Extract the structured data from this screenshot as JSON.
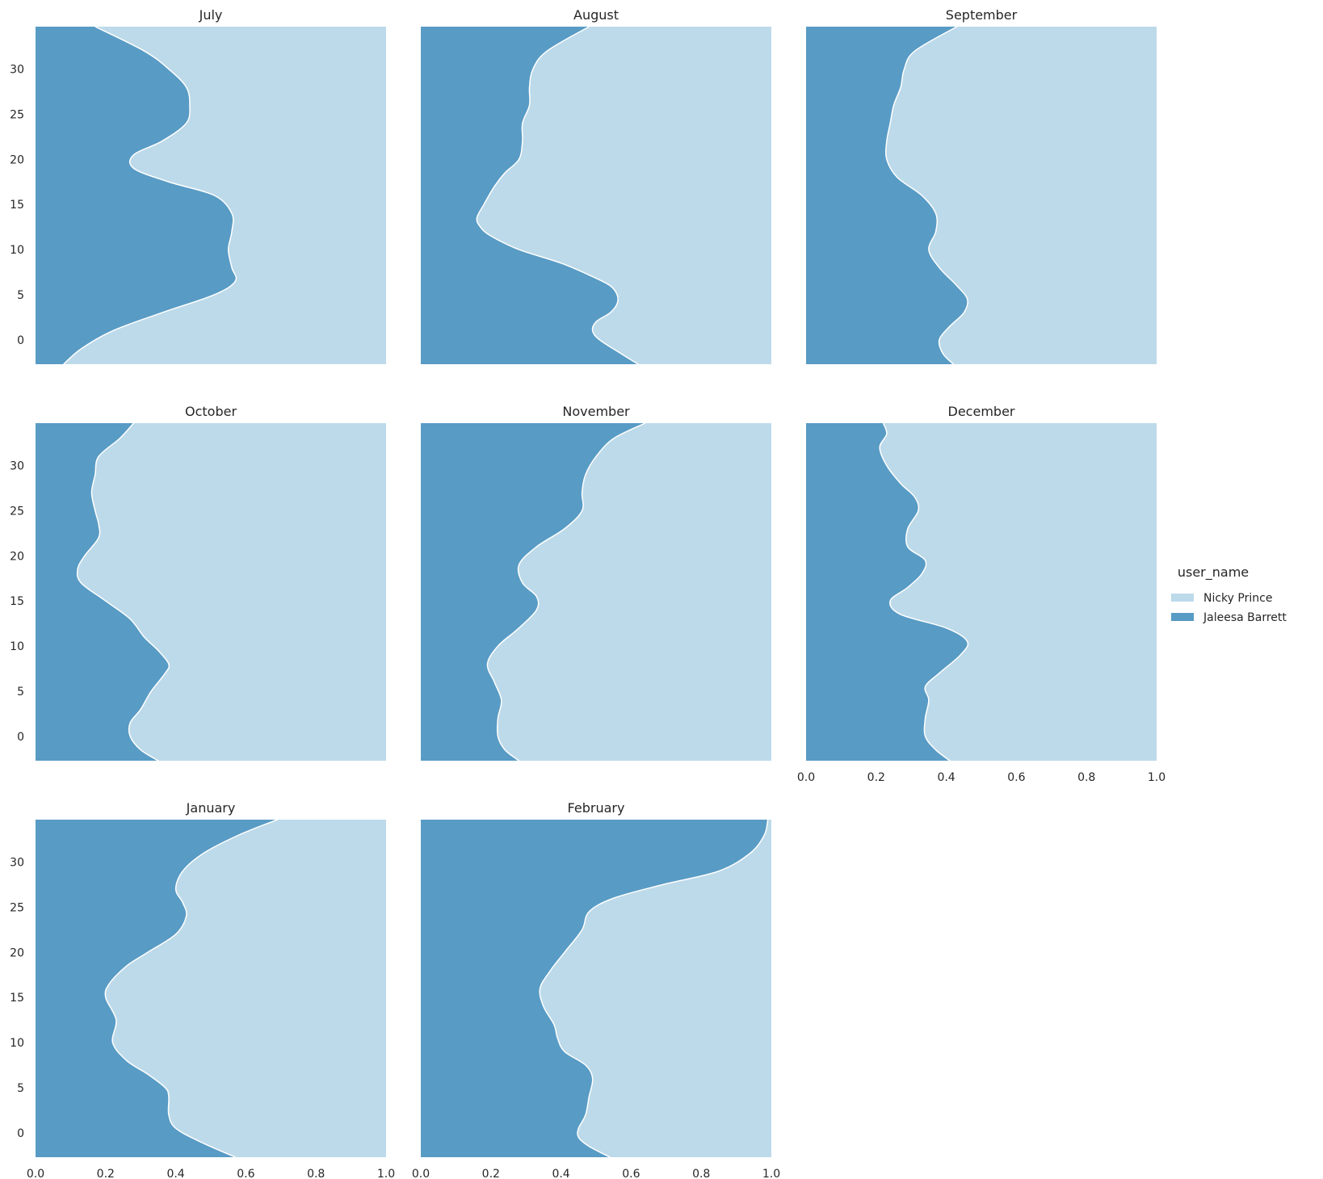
{
  "colors": {
    "Nicky Prince": "#bddaea",
    "Jaleesa Barrett": "#589bc5",
    "boundary": "#ffffff"
  },
  "legend": {
    "title": "user_name",
    "entries": [
      "Nicky Prince",
      "Jaleesa Barrett"
    ],
    "placement": "right"
  },
  "chart_data": {
    "type": "area",
    "description_hidden": false,
    "layout": "facet-grid",
    "xlim": [
      0.0,
      1.0
    ],
    "ylim": [
      -2.7,
      34.7
    ],
    "x_ticks": [
      0.0,
      0.2,
      0.4,
      0.6,
      0.8,
      1.0
    ],
    "x_tick_labels": [
      "0.0",
      "0.2",
      "0.4",
      "0.6",
      "0.8",
      "1.0"
    ],
    "y_ticks": [
      0,
      5,
      10,
      15,
      20,
      25,
      30
    ],
    "y_tick_labels": [
      "0",
      "5",
      "10",
      "15",
      "20",
      "25",
      "30"
    ],
    "stack_order": [
      "Jaleesa Barrett",
      "Nicky Prince"
    ],
    "grid": false,
    "facets": [
      {
        "title": "July",
        "boundary": [
          [
            -2.7,
            0.08
          ],
          [
            -1,
            0.13
          ],
          [
            1,
            0.22
          ],
          [
            3,
            0.36
          ],
          [
            5,
            0.51
          ],
          [
            6.5,
            0.57
          ],
          [
            8,
            0.56
          ],
          [
            10,
            0.55
          ],
          [
            12,
            0.56
          ],
          [
            14,
            0.56
          ],
          [
            16,
            0.51
          ],
          [
            17.5,
            0.38
          ],
          [
            19,
            0.28
          ],
          [
            20.5,
            0.28
          ],
          [
            22,
            0.36
          ],
          [
            24,
            0.43
          ],
          [
            26,
            0.44
          ],
          [
            28,
            0.43
          ],
          [
            30,
            0.38
          ],
          [
            32,
            0.31
          ],
          [
            34.7,
            0.17
          ]
        ]
      },
      {
        "title": "August",
        "boundary": [
          [
            -2.7,
            0.62
          ],
          [
            -1.5,
            0.57
          ],
          [
            0,
            0.51
          ],
          [
            1,
            0.49
          ],
          [
            2,
            0.5
          ],
          [
            3,
            0.54
          ],
          [
            4,
            0.56
          ],
          [
            5,
            0.56
          ],
          [
            6,
            0.54
          ],
          [
            7,
            0.49
          ],
          [
            8.5,
            0.4
          ],
          [
            10,
            0.28
          ],
          [
            11.5,
            0.2
          ],
          [
            12.5,
            0.17
          ],
          [
            13.5,
            0.16
          ],
          [
            15,
            0.18
          ],
          [
            17,
            0.21
          ],
          [
            18.5,
            0.24
          ],
          [
            20,
            0.28
          ],
          [
            22,
            0.29
          ],
          [
            24,
            0.29
          ],
          [
            26,
            0.31
          ],
          [
            28,
            0.31
          ],
          [
            30,
            0.32
          ],
          [
            32,
            0.36
          ],
          [
            34.7,
            0.48
          ]
        ]
      },
      {
        "title": "September",
        "boundary": [
          [
            -2.7,
            0.42
          ],
          [
            -1.5,
            0.39
          ],
          [
            0,
            0.38
          ],
          [
            1.5,
            0.41
          ],
          [
            3,
            0.45
          ],
          [
            4.5,
            0.46
          ],
          [
            6,
            0.43
          ],
          [
            8,
            0.38
          ],
          [
            10,
            0.35
          ],
          [
            12,
            0.37
          ],
          [
            14,
            0.37
          ],
          [
            16,
            0.33
          ],
          [
            18,
            0.26
          ],
          [
            20,
            0.23
          ],
          [
            22,
            0.23
          ],
          [
            24,
            0.24
          ],
          [
            26,
            0.25
          ],
          [
            28,
            0.27
          ],
          [
            30,
            0.28
          ],
          [
            32,
            0.31
          ],
          [
            34.7,
            0.43
          ]
        ]
      },
      {
        "title": "October",
        "boundary": [
          [
            -2.7,
            0.35
          ],
          [
            -1.5,
            0.3
          ],
          [
            0,
            0.27
          ],
          [
            1.5,
            0.27
          ],
          [
            3,
            0.3
          ],
          [
            5,
            0.33
          ],
          [
            7,
            0.37
          ],
          [
            8,
            0.38
          ],
          [
            9.5,
            0.35
          ],
          [
            11,
            0.31
          ],
          [
            13,
            0.27
          ],
          [
            15,
            0.2
          ],
          [
            17,
            0.13
          ],
          [
            18.5,
            0.12
          ],
          [
            20,
            0.14
          ],
          [
            22,
            0.18
          ],
          [
            23.5,
            0.18
          ],
          [
            25,
            0.17
          ],
          [
            27,
            0.16
          ],
          [
            29,
            0.17
          ],
          [
            31,
            0.18
          ],
          [
            33,
            0.24
          ],
          [
            34.7,
            0.28
          ]
        ]
      },
      {
        "title": "November",
        "boundary": [
          [
            -2.7,
            0.28
          ],
          [
            -1.5,
            0.24
          ],
          [
            0,
            0.22
          ],
          [
            2,
            0.22
          ],
          [
            4,
            0.23
          ],
          [
            6,
            0.21
          ],
          [
            8,
            0.19
          ],
          [
            10,
            0.22
          ],
          [
            12,
            0.28
          ],
          [
            14,
            0.33
          ],
          [
            15.5,
            0.33
          ],
          [
            17,
            0.29
          ],
          [
            19,
            0.28
          ],
          [
            21,
            0.33
          ],
          [
            23,
            0.41
          ],
          [
            25,
            0.46
          ],
          [
            27,
            0.46
          ],
          [
            29,
            0.47
          ],
          [
            31,
            0.5
          ],
          [
            33,
            0.55
          ],
          [
            34.7,
            0.64
          ]
        ]
      },
      {
        "title": "December",
        "boundary": [
          [
            -2.7,
            0.41
          ],
          [
            -1.5,
            0.37
          ],
          [
            0,
            0.34
          ],
          [
            2,
            0.34
          ],
          [
            4,
            0.35
          ],
          [
            5.5,
            0.34
          ],
          [
            7,
            0.38
          ],
          [
            9,
            0.44
          ],
          [
            10.5,
            0.46
          ],
          [
            12,
            0.4
          ],
          [
            13.5,
            0.27
          ],
          [
            15,
            0.24
          ],
          [
            16.5,
            0.29
          ],
          [
            18,
            0.33
          ],
          [
            19.5,
            0.34
          ],
          [
            21,
            0.29
          ],
          [
            23,
            0.29
          ],
          [
            25,
            0.32
          ],
          [
            26.5,
            0.31
          ],
          [
            28,
            0.27
          ],
          [
            30,
            0.23
          ],
          [
            32,
            0.21
          ],
          [
            33.5,
            0.23
          ],
          [
            34.7,
            0.22
          ]
        ]
      },
      {
        "title": "January",
        "boundary": [
          [
            -2.7,
            0.57
          ],
          [
            -1,
            0.47
          ],
          [
            0.5,
            0.4
          ],
          [
            2,
            0.38
          ],
          [
            4,
            0.38
          ],
          [
            5,
            0.37
          ],
          [
            6.5,
            0.32
          ],
          [
            8,
            0.26
          ],
          [
            10,
            0.22
          ],
          [
            12.5,
            0.23
          ],
          [
            15,
            0.2
          ],
          [
            16.5,
            0.21
          ],
          [
            18.5,
            0.26
          ],
          [
            20,
            0.32
          ],
          [
            22,
            0.4
          ],
          [
            24,
            0.43
          ],
          [
            25.5,
            0.42
          ],
          [
            27,
            0.4
          ],
          [
            29,
            0.42
          ],
          [
            31,
            0.48
          ],
          [
            33,
            0.58
          ],
          [
            34.7,
            0.69
          ]
        ]
      },
      {
        "title": "February",
        "boundary": [
          [
            -2.7,
            0.54
          ],
          [
            -1.5,
            0.48
          ],
          [
            -0.5,
            0.45
          ],
          [
            0.5,
            0.45
          ],
          [
            2,
            0.47
          ],
          [
            4,
            0.48
          ],
          [
            6,
            0.49
          ],
          [
            7.5,
            0.47
          ],
          [
            9,
            0.41
          ],
          [
            10.5,
            0.39
          ],
          [
            12,
            0.38
          ],
          [
            14,
            0.35
          ],
          [
            16,
            0.34
          ],
          [
            18,
            0.37
          ],
          [
            20,
            0.41
          ],
          [
            22.5,
            0.46
          ],
          [
            24.5,
            0.48
          ],
          [
            26,
            0.55
          ],
          [
            27.5,
            0.69
          ],
          [
            29,
            0.85
          ],
          [
            31,
            0.94
          ],
          [
            33,
            0.98
          ],
          [
            34.7,
            0.99
          ]
        ]
      }
    ]
  }
}
